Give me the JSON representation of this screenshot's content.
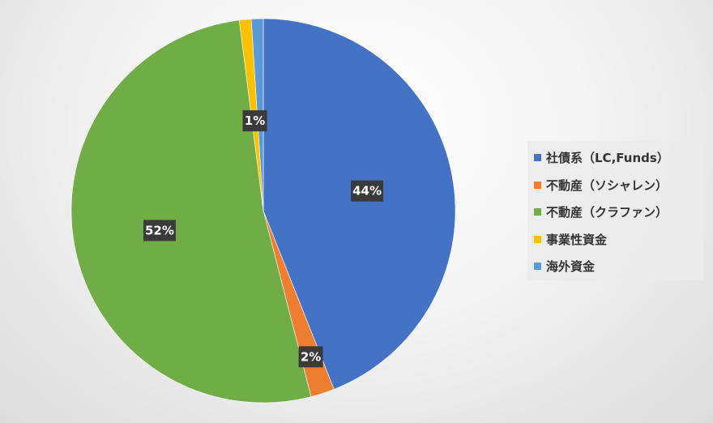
{
  "chart_data": {
    "type": "pie",
    "categories": [
      "社債系（LC,Funds）",
      "不動産（ソシャレン）",
      "不動産（クラファン）",
      "事業性資金",
      "海外資金"
    ],
    "values": [
      44,
      2,
      52,
      1,
      1
    ],
    "data_labels": [
      "44%",
      "2%",
      "52%",
      "1%",
      ""
    ],
    "colors": [
      "#4472C4",
      "#ED7D31",
      "#70AD47",
      "#FFC000",
      "#5B9BD5"
    ],
    "legend_position": "right"
  }
}
